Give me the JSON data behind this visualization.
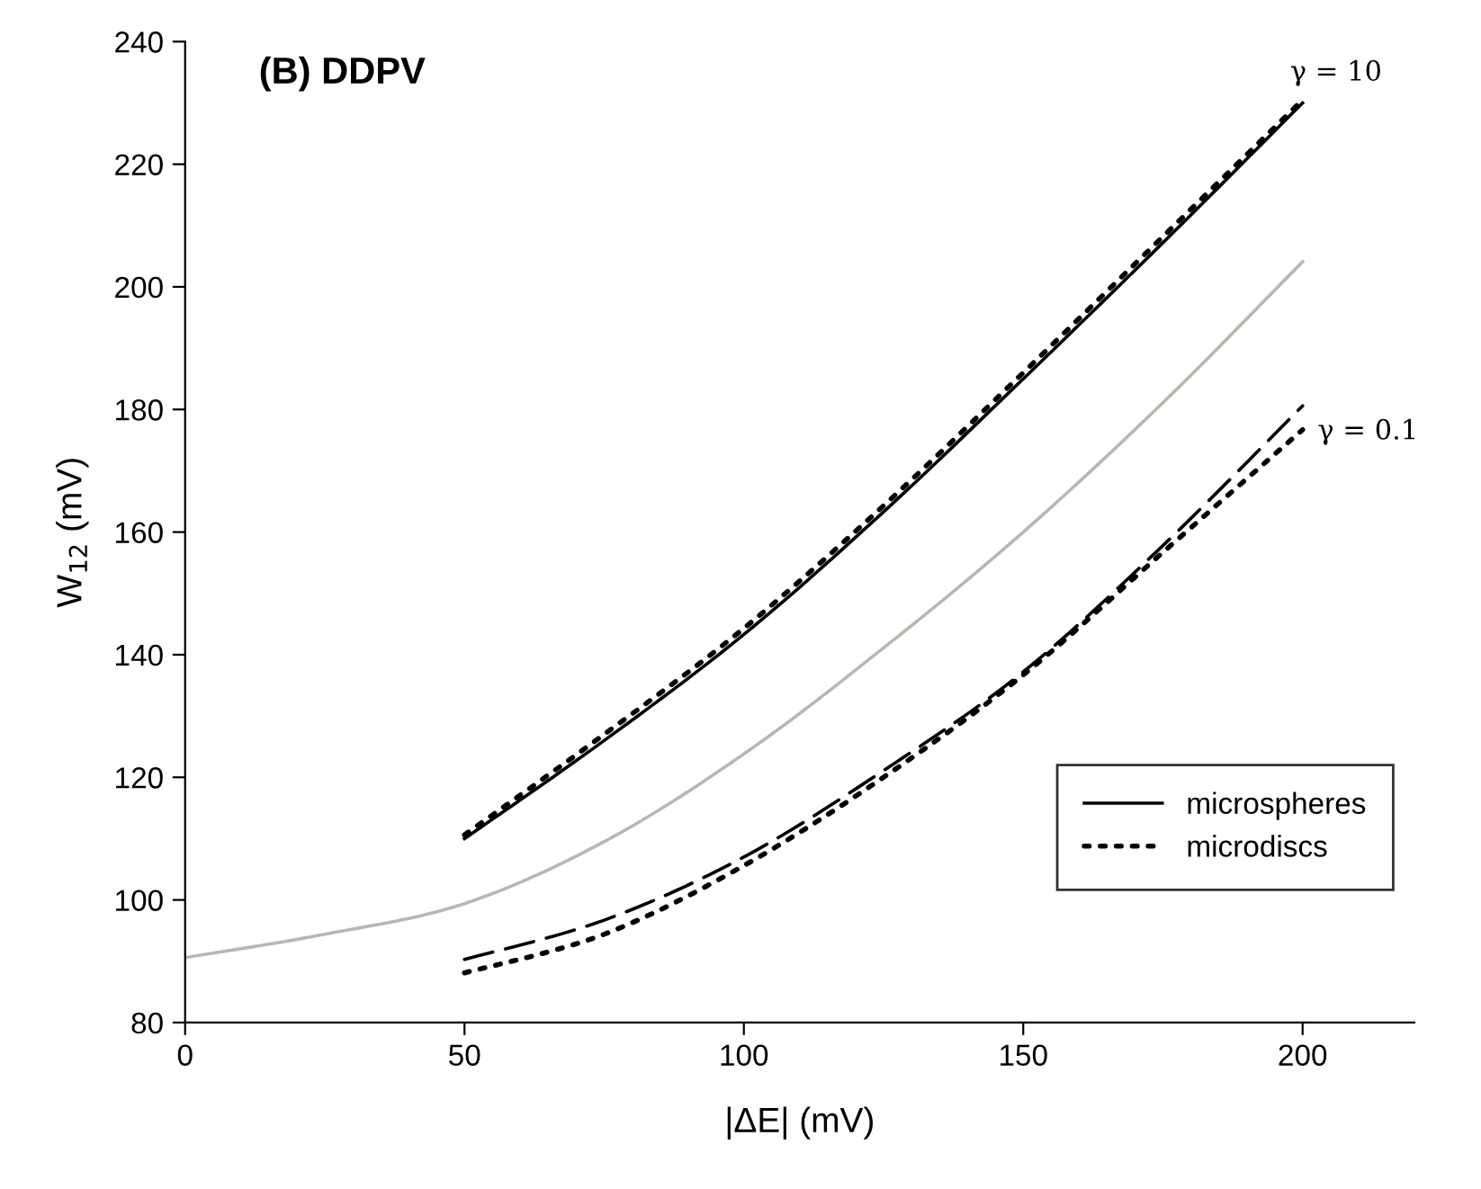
{
  "chart_data": {
    "type": "line",
    "title": "(B) DDPV",
    "xlabel": "|ΔE| (mV)",
    "ylabel": "W$_{12}$ (mV)",
    "xlim": [
      0,
      220
    ],
    "ylim": [
      80,
      240
    ],
    "xticks": [
      0,
      50,
      100,
      150,
      200
    ],
    "yticks": [
      80,
      100,
      120,
      140,
      160,
      180,
      200,
      220,
      240
    ],
    "grid": false,
    "legend": "bottom right",
    "marker": "none",
    "series": [
      {
        "color": "#b8b8b0",
        "line_style": "solid",
        "x": [
          0,
          25,
          50,
          75,
          100,
          125,
          150,
          175,
          200
        ],
        "values": [
          90.6,
          94.4,
          99.4,
          109.5,
          123.8,
          141.1,
          160,
          181.1,
          204.1
        ]
      },
      {
        "name": "microspheres",
        "color": "#000000",
        "line_style": "solid",
        "x": [
          50,
          75,
          100,
          125,
          150,
          175,
          200
        ],
        "values": [
          110,
          126,
          143.3,
          163.3,
          185,
          207.2,
          230
        ]
      },
      {
        "name": "microdiscs",
        "color": "#000000",
        "line_style": "dotted",
        "x": [
          50,
          75,
          100,
          125,
          150,
          175,
          200
        ],
        "values": [
          110.6,
          127,
          144.3,
          164.3,
          186,
          208.2,
          230.5
        ]
      },
      {
        "color": "#000000",
        "line_style": "dashed",
        "x": [
          50,
          75,
          100,
          125,
          150,
          175,
          200
        ],
        "values": [
          90.3,
          96.7,
          107,
          121.1,
          137.2,
          157.8,
          180.6
        ]
      },
      {
        "color": "#000000",
        "line_style": "dotted",
        "x": [
          50,
          75,
          100,
          125,
          150,
          175,
          200
        ],
        "values": [
          88.1,
          94.4,
          105.6,
          120,
          136.7,
          156.7,
          176.7
        ]
      }
    ],
    "annotations": [
      {
        "text": "γ = 10",
        "x": 200,
        "y": 230
      },
      {
        "text": "γ = 0.1",
        "x": 200,
        "y": 178
      }
    ]
  }
}
